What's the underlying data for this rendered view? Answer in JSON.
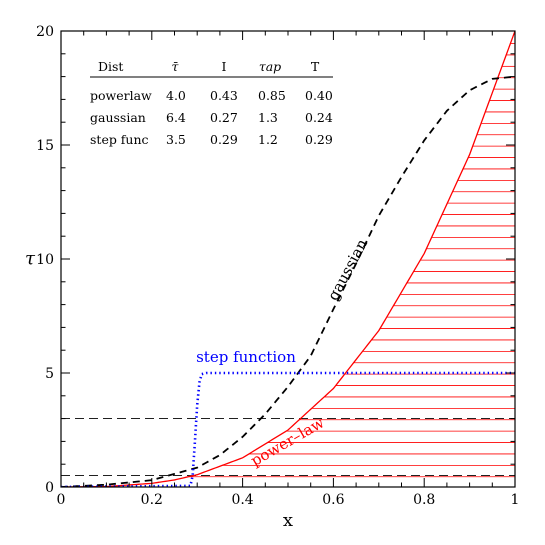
{
  "chart_data": {
    "type": "line",
    "xlabel": "x",
    "ylabel": "τ",
    "xlim": [
      0,
      1
    ],
    "ylim": [
      0,
      20
    ],
    "x_ticks": [
      "0",
      "0.2",
      "0.4",
      "0.6",
      "0.8",
      "1"
    ],
    "y_ticks": [
      "0",
      "5",
      "10",
      "15",
      "20"
    ],
    "series": [
      {
        "name": "power-law",
        "style": "solid",
        "color": "#ff0000",
        "fill": "horizontal-hatch",
        "x": [
          0,
          0.1,
          0.2,
          0.25,
          0.3,
          0.4,
          0.5,
          0.6,
          0.7,
          0.8,
          0.9,
          1.0
        ],
        "y": [
          0,
          0.02,
          0.16,
          0.31,
          0.54,
          1.28,
          2.5,
          4.32,
          6.86,
          10.24,
          14.58,
          20.0
        ]
      },
      {
        "name": "gaussian",
        "style": "dashed",
        "color": "#000000",
        "x": [
          0,
          0.1,
          0.2,
          0.3,
          0.35,
          0.4,
          0.45,
          0.5,
          0.55,
          0.6,
          0.65,
          0.7,
          0.75,
          0.8,
          0.85,
          0.9,
          0.95,
          1.0
        ],
        "y": [
          0.0,
          0.1,
          0.3,
          0.85,
          1.4,
          2.2,
          3.2,
          4.4,
          5.75,
          7.8,
          9.8,
          11.9,
          13.6,
          15.2,
          16.5,
          17.4,
          17.9,
          18.0
        ]
      },
      {
        "name": "step function",
        "style": "dotted",
        "color": "#0000ff",
        "x": [
          0,
          0.285,
          0.29,
          0.295,
          0.3,
          0.305,
          0.31,
          0.32,
          1.0
        ],
        "y": [
          0,
          0.05,
          0.5,
          2.0,
          3.6,
          4.6,
          4.95,
          5.0,
          5.0
        ]
      }
    ],
    "hlines": [
      0.5,
      3.0
    ],
    "curve_labels": {
      "gaussian": "gaussian",
      "step": "step function",
      "power": "power–law"
    },
    "table": {
      "headers": [
        "Dist",
        "τ̄",
        "I",
        "τap",
        "T"
      ],
      "rows": [
        [
          "powerlaw",
          "4.0",
          "0.43",
          "0.85",
          "0.40"
        ],
        [
          "gaussian",
          "6.4",
          "0.27",
          "1.3",
          "0.24"
        ],
        [
          "step func",
          "3.5",
          "0.29",
          "1.2",
          "0.29"
        ]
      ]
    }
  }
}
